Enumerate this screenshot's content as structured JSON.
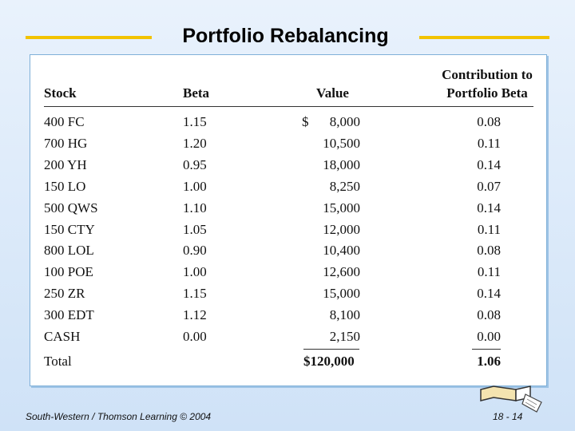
{
  "slide": {
    "title": "Portfolio Rebalancing",
    "footer_left": "South-Western / Thomson Learning © 2004",
    "footer_right": "18 - 14"
  },
  "table": {
    "headers": {
      "stock": "Stock",
      "beta": "Beta",
      "value": "Value",
      "contribution_line1": "Contribution to",
      "contribution_line2": "Portfolio Beta"
    },
    "currency_symbol": "$",
    "rows": [
      {
        "stock": "400 FC",
        "beta": "1.15",
        "value": "8,000",
        "contribution": "0.08"
      },
      {
        "stock": "700 HG",
        "beta": "1.20",
        "value": "10,500",
        "contribution": "0.11"
      },
      {
        "stock": "200 YH",
        "beta": "0.95",
        "value": "18,000",
        "contribution": "0.14"
      },
      {
        "stock": "150 LO",
        "beta": "1.00",
        "value": "8,250",
        "contribution": "0.07"
      },
      {
        "stock": "500 QWS",
        "beta": "1.10",
        "value": "15,000",
        "contribution": "0.14"
      },
      {
        "stock": "150 CTY",
        "beta": "1.05",
        "value": "12,000",
        "contribution": "0.11"
      },
      {
        "stock": "800 LOL",
        "beta": "0.90",
        "value": "10,400",
        "contribution": "0.08"
      },
      {
        "stock": "100 POE",
        "beta": "1.00",
        "value": "12,600",
        "contribution": "0.11"
      },
      {
        "stock": "250 ZR",
        "beta": "1.15",
        "value": "15,000",
        "contribution": "0.14"
      },
      {
        "stock": "300 EDT",
        "beta": "1.12",
        "value": "8,100",
        "contribution": "0.08"
      },
      {
        "stock": "CASH",
        "beta": "0.00",
        "value": "2,150",
        "contribution": "0.00"
      }
    ],
    "total": {
      "label": "Total",
      "value": "$120,000",
      "contribution": "1.06"
    }
  }
}
